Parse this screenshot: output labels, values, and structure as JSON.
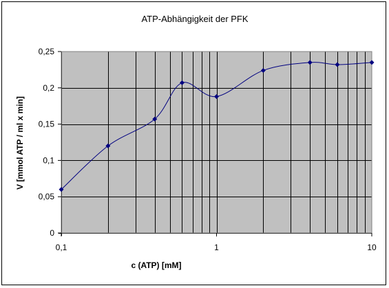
{
  "chart_data": {
    "type": "line",
    "title": "ATP-Abhängigkeit der PFK",
    "xlabel": "c (ATP) [mM]",
    "ylabel": "V [mmol ATP / ml x min]",
    "x_scale": "log",
    "xlim": [
      0.1,
      10
    ],
    "ylim": [
      0,
      0.25
    ],
    "x_ticks": [
      {
        "value": 0.1,
        "label": "0,1"
      },
      {
        "value": 1,
        "label": "1"
      },
      {
        "value": 10,
        "label": "10"
      }
    ],
    "y_ticks": [
      {
        "value": 0,
        "label": "0"
      },
      {
        "value": 0.05,
        "label": "0,05"
      },
      {
        "value": 0.1,
        "label": "0,1"
      },
      {
        "value": 0.15,
        "label": "0,15"
      },
      {
        "value": 0.2,
        "label": "0,2"
      },
      {
        "value": 0.25,
        "label": "0,25"
      }
    ],
    "grid": true,
    "legend": "none",
    "colors": {
      "plot_background": "#c0c0c0",
      "series": "#000080",
      "grid": "#000000"
    },
    "series": [
      {
        "x": [
          0.1,
          0.2,
          0.4,
          0.6,
          1,
          2,
          4,
          6,
          10
        ],
        "y": [
          0.06,
          0.12,
          0.157,
          0.207,
          0.188,
          0.224,
          0.235,
          0.232,
          0.235
        ]
      }
    ]
  }
}
